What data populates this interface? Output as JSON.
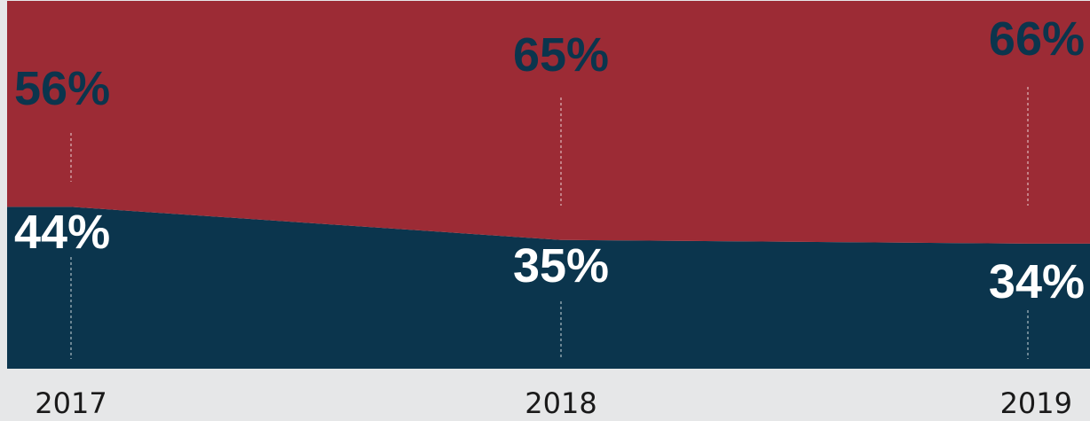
{
  "chart_data": {
    "type": "area",
    "stacked": true,
    "normalized": true,
    "categories": [
      "2017",
      "2018",
      "2019"
    ],
    "series": [
      {
        "values": [
          44,
          35,
          34
        ],
        "labels": [
          "44%",
          "35%",
          "34%"
        ],
        "color": "#0b354d"
      },
      {
        "values": [
          56,
          65,
          66
        ],
        "labels": [
          "56%",
          "65%",
          "66%"
        ],
        "color": "#9c2b35"
      }
    ],
    "ylim": [
      0,
      100
    ],
    "grid": false,
    "legend": "none",
    "colors": {
      "background": "#e6e7e8",
      "top_label_text": "#0b354d",
      "bottom_label_text": "#ffffff",
      "guide_line": "#ffffff"
    }
  }
}
